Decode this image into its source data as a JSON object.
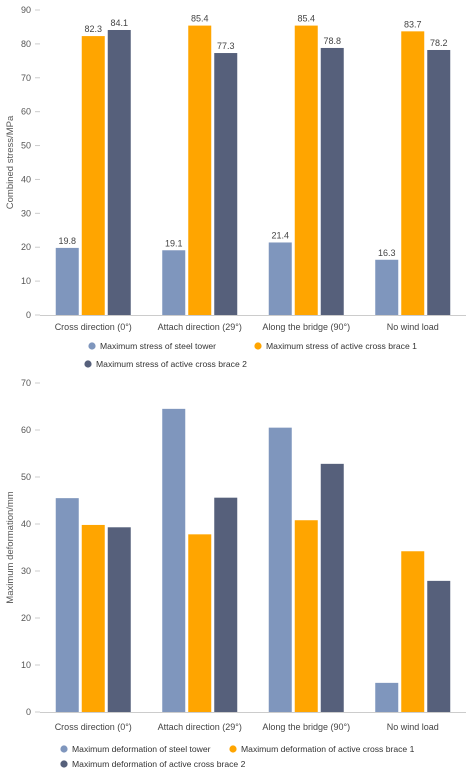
{
  "chart_data": [
    {
      "type": "bar",
      "ylabel": "Combined stress/MPa",
      "ylim": [
        0,
        90
      ],
      "ytick_step": 10,
      "grid": false,
      "legend_position": "bottom",
      "data_labels": true,
      "categories": [
        "Cross direction (0°)",
        "Attach direction (29°)",
        "Along the bridge (90°)",
        "No wind load"
      ],
      "series": [
        {
          "name": "Maximum stress of steel tower",
          "color": "#7f96bd",
          "values": [
            19.8,
            19.1,
            21.4,
            16.3
          ]
        },
        {
          "name": "Maximum stress of active cross brace 1",
          "color": "#ffa500",
          "values": [
            82.3,
            85.4,
            85.4,
            83.7
          ]
        },
        {
          "name": "Maximum stress of active cross brace 2",
          "color": "#56607b",
          "values": [
            84.1,
            77.3,
            78.8,
            78.2
          ]
        }
      ]
    },
    {
      "type": "bar",
      "ylabel": "Maximum deformation/mm",
      "ylim": [
        0,
        70
      ],
      "ytick_step": 10,
      "grid": false,
      "legend_position": "bottom",
      "data_labels": false,
      "categories": [
        "Cross direction (0°)",
        "Attach direction (29°)",
        "Along the bridge (90°)",
        "No wind load"
      ],
      "series": [
        {
          "name": "Maximum deformation of steel tower",
          "color": "#7f96bd",
          "values": [
            45.5,
            64.5,
            60.5,
            6.2
          ]
        },
        {
          "name": "Maximum deformation of active cross brace 1",
          "color": "#ffa500",
          "values": [
            39.8,
            37.8,
            40.8,
            34.2
          ]
        },
        {
          "name": "Maximum deformation of active cross brace 2",
          "color": "#56607b",
          "values": [
            39.3,
            45.6,
            52.8,
            27.9
          ]
        }
      ]
    }
  ]
}
